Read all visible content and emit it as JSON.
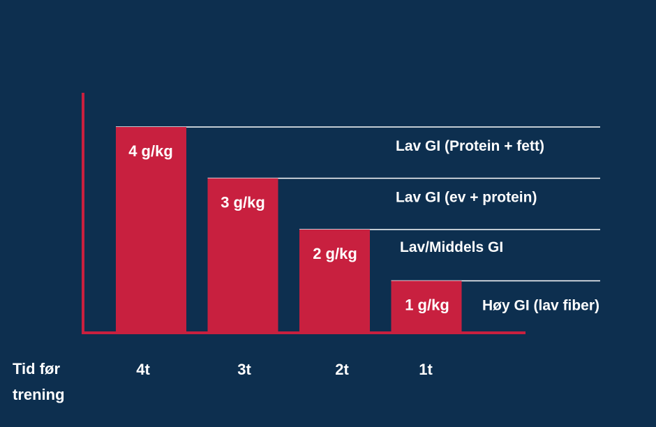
{
  "chart_data": {
    "type": "bar",
    "xlabel_lines": [
      "Tid før",
      "trening"
    ],
    "categories": [
      "4t",
      "3t",
      "2t",
      "1t"
    ],
    "values": [
      4,
      3,
      2,
      1
    ],
    "unit": "g/kg",
    "bar_labels": [
      "4 g/kg",
      "3 g/kg",
      "2 g/kg",
      "1 g/kg"
    ],
    "annotations": [
      "Lav GI (Protein + fett)",
      "Lav GI (ev + protein)",
      "Lav/Middels GI",
      "Høy GI (lav fiber)"
    ],
    "ylim": [
      0,
      4
    ],
    "grid": false
  },
  "colors": {
    "background": "#0d2f4f",
    "bar": "#c8203f",
    "axis": "#c8203f",
    "guide_line": "#ffffff",
    "text": "#ffffff"
  }
}
